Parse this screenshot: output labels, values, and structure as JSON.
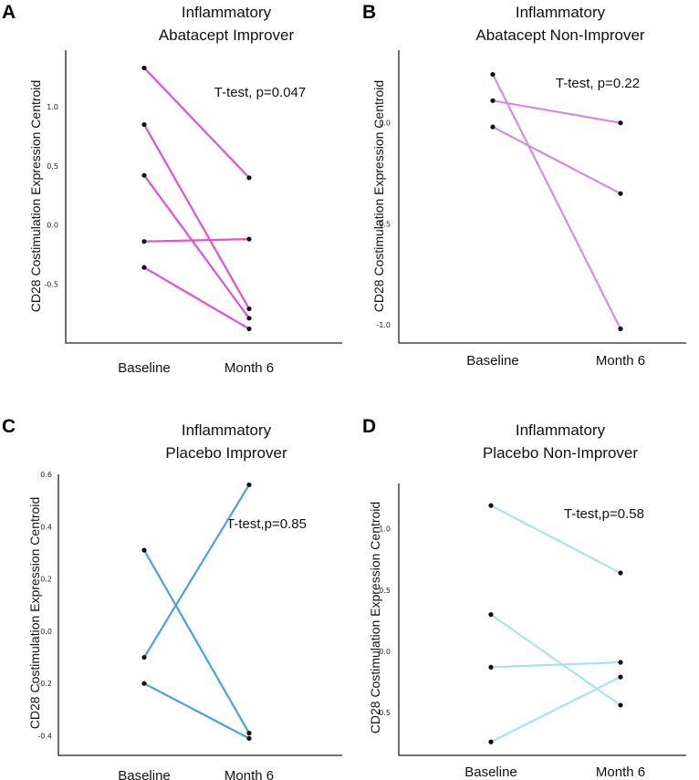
{
  "chart_data": [
    {
      "panel": "A",
      "type": "line",
      "title_lines": [
        "Inflammatory",
        "Abatacept Improver"
      ],
      "ylabel": "CD28 Costimulation Expression Centroid",
      "categories": [
        "Baseline",
        "Month 6"
      ],
      "yticks": [
        "1.0",
        "0.5",
        "0.0",
        "-0.5"
      ],
      "ytick_values": [
        1.0,
        0.5,
        0.0,
        -0.5
      ],
      "ylim": [
        -1.0,
        1.48
      ],
      "annotation": "T-test, p=0.047",
      "color": "#e64fd3",
      "series": [
        {
          "values": [
            1.33,
            0.4
          ]
        },
        {
          "values": [
            0.85,
            -0.71
          ]
        },
        {
          "values": [
            0.42,
            -0.79
          ]
        },
        {
          "values": [
            -0.14,
            -0.12
          ]
        },
        {
          "values": [
            -0.36,
            -0.88
          ]
        }
      ]
    },
    {
      "panel": "B",
      "type": "line",
      "title_lines": [
        "Inflammatory",
        "Abatacept Non-Improver"
      ],
      "ylabel": "CD28 Costimulation Expression Centroid",
      "categories": [
        "Baseline",
        "Month 6"
      ],
      "yticks": [
        "0.0",
        "-0.5",
        "-1.0"
      ],
      "ytick_values": [
        0.0,
        -0.5,
        -1.0
      ],
      "ylim": [
        -1.09,
        0.36
      ],
      "annotation": "T-test, p=0.22",
      "color": "#d58ce0",
      "series": [
        {
          "values": [
            0.24,
            -1.02
          ]
        },
        {
          "values": [
            0.11,
            0.0
          ]
        },
        {
          "values": [
            -0.02,
            -0.35
          ]
        }
      ]
    },
    {
      "panel": "C",
      "type": "line",
      "title_lines": [
        "Inflammatory",
        "Placebo Improver"
      ],
      "ylabel": "CD28 Costimulation Expression Centroid",
      "categories": [
        "Baseline",
        "Month 6"
      ],
      "yticks": [
        "0.6",
        "0.4",
        "0.2",
        "0.0",
        "-0.2",
        "-0.4"
      ],
      "ytick_values": [
        0.6,
        0.4,
        0.2,
        0.0,
        -0.2,
        -0.4
      ],
      "ylim": [
        -0.475,
        0.6
      ],
      "annotation": "T-test,p=0.85",
      "color": "#44a6d6",
      "series": [
        {
          "values": [
            0.31,
            -0.39
          ]
        },
        {
          "values": [
            -0.1,
            0.56
          ]
        },
        {
          "values": [
            -0.2,
            -0.41
          ]
        }
      ]
    },
    {
      "panel": "D",
      "type": "line",
      "title_lines": [
        "Inflammatory",
        "Placebo Non-Improver"
      ],
      "ylabel": "CD28 Costimulation Expression Centroid",
      "categories": [
        "Baseline",
        "Month 6"
      ],
      "yticks": [
        "1.0",
        "0.5",
        "0.0",
        "-0.5"
      ],
      "ytick_values": [
        1.0,
        0.5,
        0.0,
        -0.5
      ],
      "ylim": [
        -0.85,
        1.37
      ],
      "annotation": "T-test,p=0.58",
      "color": "#a8e2ee",
      "series": [
        {
          "values": [
            1.19,
            0.64
          ]
        },
        {
          "values": [
            0.3,
            -0.44
          ]
        },
        {
          "values": [
            -0.13,
            -0.09
          ]
        },
        {
          "values": [
            -0.74,
            -0.21
          ]
        }
      ]
    }
  ]
}
